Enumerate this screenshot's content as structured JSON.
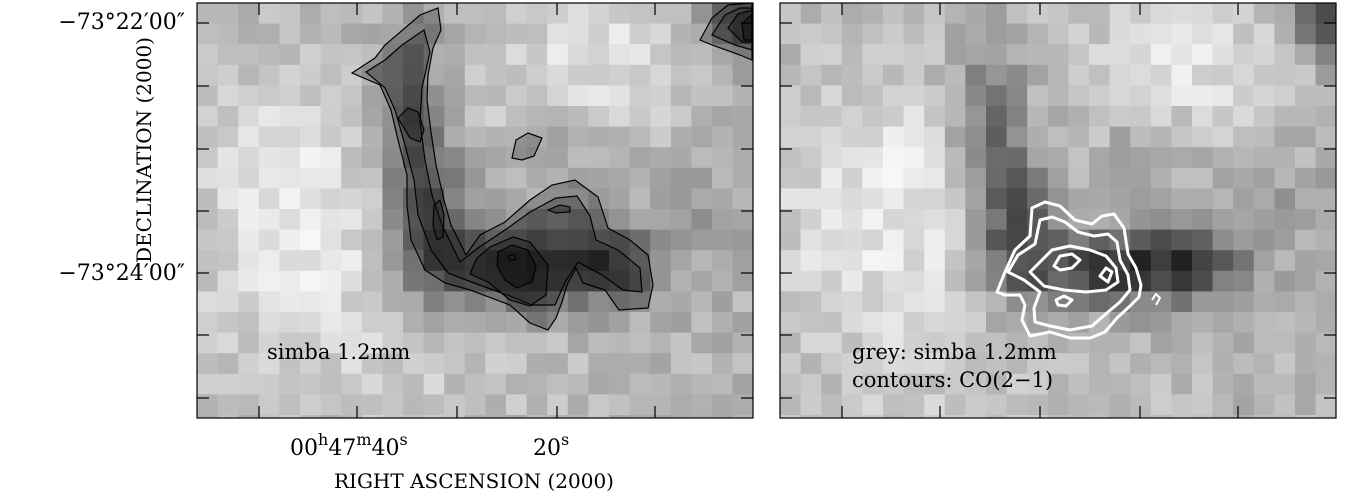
{
  "chart_data": [
    {
      "type": "heatmap",
      "panel": "left",
      "colormap": "greyscale",
      "overlay": "black contours",
      "annotation": "simba 1.2mm",
      "xlabel": "RIGHT ASCENSION (2000)",
      "ylabel": "DECLINATION (2000)",
      "x_tick_labels": [
        {
          "h": "00",
          "m": "47",
          "s": "40"
        },
        {
          "s": "20"
        }
      ],
      "y_tick_labels": [
        "−73°22′00″",
        "−73°24′00″"
      ],
      "grid": false
    },
    {
      "type": "heatmap",
      "panel": "right",
      "colormap": "greyscale",
      "overlay": "white contours",
      "annotation": [
        "grey: simba 1.2mm",
        "contours: CO(2−1)"
      ],
      "x_tick_labels": [],
      "y_tick_labels": [],
      "grid": false
    }
  ],
  "colors": {
    "left_contours": "#000000",
    "right_contours": "#ffffff",
    "frame": "#000000"
  }
}
